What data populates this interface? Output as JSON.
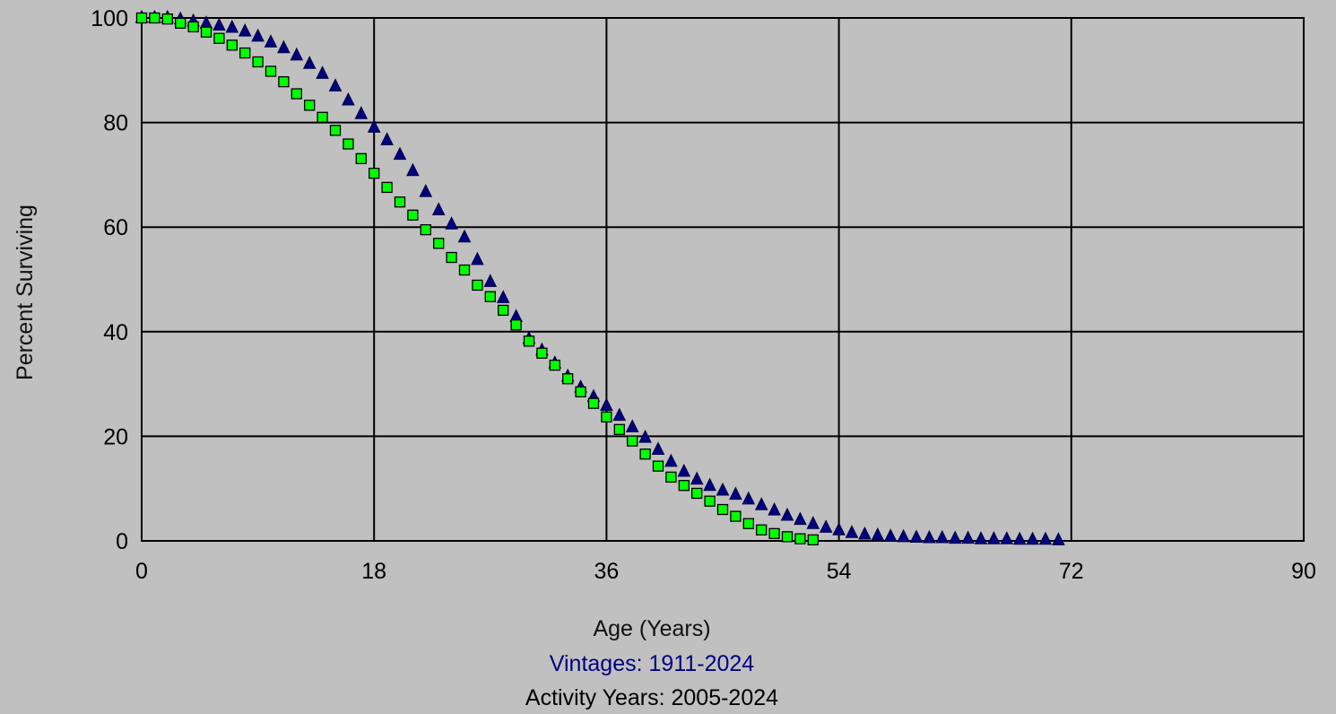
{
  "colors": {
    "background": "#c0c0c0",
    "grid": "#000000",
    "series1_fill": "#000080",
    "series2_fill": "#00ff00",
    "series2_stroke": "#000000",
    "caption_vintages": "#000080",
    "caption_activity": "#000000"
  },
  "captions": {
    "xlabel": "Age (Years)",
    "vintages": "Vintages: 1911-2024",
    "activity": "Activity Years: 2005-2024"
  },
  "chart_data": {
    "type": "scatter",
    "title": "",
    "xlabel": "Age (Years)",
    "ylabel": "Percent Surviving",
    "xlim": [
      0,
      90
    ],
    "ylim": [
      0,
      100
    ],
    "xticks": [
      0,
      18,
      36,
      54,
      72,
      90
    ],
    "yticks": [
      0,
      20,
      40,
      60,
      80,
      100
    ],
    "grid": true,
    "legend": "none",
    "series": [
      {
        "marker": "triangle",
        "color": "#000080",
        "x": [
          0,
          1,
          2,
          3,
          4,
          5,
          6,
          7,
          8,
          9,
          10,
          11,
          12,
          13,
          14,
          15,
          16,
          17,
          18,
          19,
          20,
          21,
          22,
          23,
          24,
          25,
          26,
          27,
          28,
          29,
          30,
          31,
          32,
          33,
          34,
          35,
          36,
          37,
          38,
          39,
          40,
          41,
          42,
          43,
          44,
          45,
          46,
          47,
          48,
          49,
          50,
          51,
          52,
          53,
          54,
          55,
          56,
          57,
          58,
          59,
          60,
          61,
          62,
          63,
          64,
          65,
          66,
          67,
          68,
          69,
          70,
          71
        ],
        "values": [
          100,
          100,
          100,
          99.7,
          99.3,
          98.9,
          98.5,
          98.1,
          97.4,
          96.4,
          95.3,
          94.2,
          92.8,
          91.2,
          89.3,
          86.9,
          84.2,
          81.6,
          79.0,
          76.6,
          73.8,
          70.7,
          66.7,
          63.2,
          60.5,
          58.0,
          53.7,
          49.5,
          46.4,
          42.8,
          38.6,
          36.4,
          33.9,
          31.4,
          29.3,
          27.5,
          25.8,
          23.9,
          21.7,
          19.7,
          17.4,
          15.1,
          13.2,
          11.7,
          10.5,
          9.6,
          8.8,
          7.9,
          6.8,
          5.8,
          4.8,
          4.0,
          3.2,
          2.5,
          2.0,
          1.5,
          1.2,
          1.0,
          0.8,
          0.7,
          0.6,
          0.5,
          0.5,
          0.4,
          0.4,
          0.3,
          0.3,
          0.3,
          0.2,
          0.2,
          0.2,
          0.1
        ]
      },
      {
        "marker": "square",
        "color": "#00ff00",
        "x": [
          0,
          1,
          2,
          3,
          4,
          5,
          6,
          7,
          8,
          9,
          10,
          11,
          12,
          13,
          14,
          15,
          16,
          17,
          18,
          19,
          20,
          21,
          22,
          23,
          24,
          25,
          26,
          27,
          28,
          29,
          30,
          31,
          32,
          33,
          34,
          35,
          36,
          37,
          38,
          39,
          40,
          41,
          42,
          43,
          44,
          45,
          46,
          47,
          48,
          49,
          50,
          51,
          52
        ],
        "values": [
          100,
          100,
          99.8,
          99.0,
          98.3,
          97.3,
          96.1,
          94.8,
          93.3,
          91.6,
          89.8,
          87.8,
          85.5,
          83.3,
          81.0,
          78.5,
          75.9,
          73.1,
          70.3,
          67.6,
          64.8,
          62.3,
          59.5,
          56.9,
          54.2,
          51.8,
          48.9,
          46.7,
          44.1,
          41.3,
          38.2,
          35.9,
          33.6,
          31.0,
          28.5,
          26.3,
          23.7,
          21.3,
          19.1,
          16.6,
          14.3,
          12.2,
          10.6,
          9.1,
          7.6,
          6.0,
          4.7,
          3.3,
          2.1,
          1.4,
          0.8,
          0.4,
          0.2
        ]
      }
    ]
  }
}
